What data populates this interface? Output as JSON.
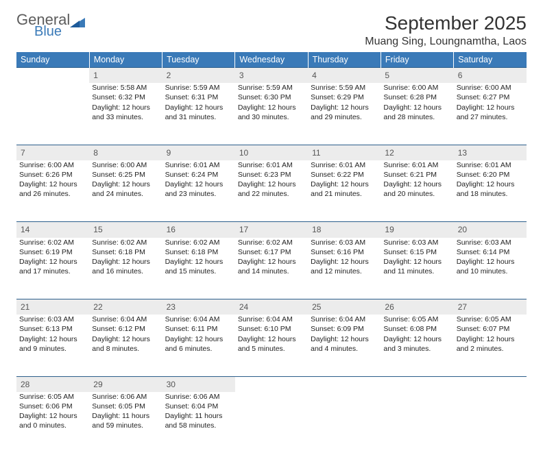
{
  "logo": {
    "general": "General",
    "blue": "Blue"
  },
  "title": "September 2025",
  "location": "Muang Sing, Loungnamtha, Laos",
  "colors": {
    "header_bg": "#3a7ab8",
    "daynum_bg": "#ececec",
    "rule": "#2a5d8a",
    "text": "#222222",
    "logo_gray": "#5c5c5c",
    "logo_blue": "#3a7ab8"
  },
  "weekdays": [
    "Sunday",
    "Monday",
    "Tuesday",
    "Wednesday",
    "Thursday",
    "Friday",
    "Saturday"
  ],
  "weeks": [
    {
      "nums": [
        "",
        "1",
        "2",
        "3",
        "4",
        "5",
        "6"
      ],
      "cells": [
        null,
        {
          "sunrise": "Sunrise: 5:58 AM",
          "sunset": "Sunset: 6:32 PM",
          "d1": "Daylight: 12 hours",
          "d2": "and 33 minutes."
        },
        {
          "sunrise": "Sunrise: 5:59 AM",
          "sunset": "Sunset: 6:31 PM",
          "d1": "Daylight: 12 hours",
          "d2": "and 31 minutes."
        },
        {
          "sunrise": "Sunrise: 5:59 AM",
          "sunset": "Sunset: 6:30 PM",
          "d1": "Daylight: 12 hours",
          "d2": "and 30 minutes."
        },
        {
          "sunrise": "Sunrise: 5:59 AM",
          "sunset": "Sunset: 6:29 PM",
          "d1": "Daylight: 12 hours",
          "d2": "and 29 minutes."
        },
        {
          "sunrise": "Sunrise: 6:00 AM",
          "sunset": "Sunset: 6:28 PM",
          "d1": "Daylight: 12 hours",
          "d2": "and 28 minutes."
        },
        {
          "sunrise": "Sunrise: 6:00 AM",
          "sunset": "Sunset: 6:27 PM",
          "d1": "Daylight: 12 hours",
          "d2": "and 27 minutes."
        }
      ]
    },
    {
      "nums": [
        "7",
        "8",
        "9",
        "10",
        "11",
        "12",
        "13"
      ],
      "cells": [
        {
          "sunrise": "Sunrise: 6:00 AM",
          "sunset": "Sunset: 6:26 PM",
          "d1": "Daylight: 12 hours",
          "d2": "and 26 minutes."
        },
        {
          "sunrise": "Sunrise: 6:00 AM",
          "sunset": "Sunset: 6:25 PM",
          "d1": "Daylight: 12 hours",
          "d2": "and 24 minutes."
        },
        {
          "sunrise": "Sunrise: 6:01 AM",
          "sunset": "Sunset: 6:24 PM",
          "d1": "Daylight: 12 hours",
          "d2": "and 23 minutes."
        },
        {
          "sunrise": "Sunrise: 6:01 AM",
          "sunset": "Sunset: 6:23 PM",
          "d1": "Daylight: 12 hours",
          "d2": "and 22 minutes."
        },
        {
          "sunrise": "Sunrise: 6:01 AM",
          "sunset": "Sunset: 6:22 PM",
          "d1": "Daylight: 12 hours",
          "d2": "and 21 minutes."
        },
        {
          "sunrise": "Sunrise: 6:01 AM",
          "sunset": "Sunset: 6:21 PM",
          "d1": "Daylight: 12 hours",
          "d2": "and 20 minutes."
        },
        {
          "sunrise": "Sunrise: 6:01 AM",
          "sunset": "Sunset: 6:20 PM",
          "d1": "Daylight: 12 hours",
          "d2": "and 18 minutes."
        }
      ]
    },
    {
      "nums": [
        "14",
        "15",
        "16",
        "17",
        "18",
        "19",
        "20"
      ],
      "cells": [
        {
          "sunrise": "Sunrise: 6:02 AM",
          "sunset": "Sunset: 6:19 PM",
          "d1": "Daylight: 12 hours",
          "d2": "and 17 minutes."
        },
        {
          "sunrise": "Sunrise: 6:02 AM",
          "sunset": "Sunset: 6:18 PM",
          "d1": "Daylight: 12 hours",
          "d2": "and 16 minutes."
        },
        {
          "sunrise": "Sunrise: 6:02 AM",
          "sunset": "Sunset: 6:18 PM",
          "d1": "Daylight: 12 hours",
          "d2": "and 15 minutes."
        },
        {
          "sunrise": "Sunrise: 6:02 AM",
          "sunset": "Sunset: 6:17 PM",
          "d1": "Daylight: 12 hours",
          "d2": "and 14 minutes."
        },
        {
          "sunrise": "Sunrise: 6:03 AM",
          "sunset": "Sunset: 6:16 PM",
          "d1": "Daylight: 12 hours",
          "d2": "and 12 minutes."
        },
        {
          "sunrise": "Sunrise: 6:03 AM",
          "sunset": "Sunset: 6:15 PM",
          "d1": "Daylight: 12 hours",
          "d2": "and 11 minutes."
        },
        {
          "sunrise": "Sunrise: 6:03 AM",
          "sunset": "Sunset: 6:14 PM",
          "d1": "Daylight: 12 hours",
          "d2": "and 10 minutes."
        }
      ]
    },
    {
      "nums": [
        "21",
        "22",
        "23",
        "24",
        "25",
        "26",
        "27"
      ],
      "cells": [
        {
          "sunrise": "Sunrise: 6:03 AM",
          "sunset": "Sunset: 6:13 PM",
          "d1": "Daylight: 12 hours",
          "d2": "and 9 minutes."
        },
        {
          "sunrise": "Sunrise: 6:04 AM",
          "sunset": "Sunset: 6:12 PM",
          "d1": "Daylight: 12 hours",
          "d2": "and 8 minutes."
        },
        {
          "sunrise": "Sunrise: 6:04 AM",
          "sunset": "Sunset: 6:11 PM",
          "d1": "Daylight: 12 hours",
          "d2": "and 6 minutes."
        },
        {
          "sunrise": "Sunrise: 6:04 AM",
          "sunset": "Sunset: 6:10 PM",
          "d1": "Daylight: 12 hours",
          "d2": "and 5 minutes."
        },
        {
          "sunrise": "Sunrise: 6:04 AM",
          "sunset": "Sunset: 6:09 PM",
          "d1": "Daylight: 12 hours",
          "d2": "and 4 minutes."
        },
        {
          "sunrise": "Sunrise: 6:05 AM",
          "sunset": "Sunset: 6:08 PM",
          "d1": "Daylight: 12 hours",
          "d2": "and 3 minutes."
        },
        {
          "sunrise": "Sunrise: 6:05 AM",
          "sunset": "Sunset: 6:07 PM",
          "d1": "Daylight: 12 hours",
          "d2": "and 2 minutes."
        }
      ]
    },
    {
      "nums": [
        "28",
        "29",
        "30",
        "",
        "",
        "",
        ""
      ],
      "cells": [
        {
          "sunrise": "Sunrise: 6:05 AM",
          "sunset": "Sunset: 6:06 PM",
          "d1": "Daylight: 12 hours",
          "d2": "and 0 minutes."
        },
        {
          "sunrise": "Sunrise: 6:06 AM",
          "sunset": "Sunset: 6:05 PM",
          "d1": "Daylight: 11 hours",
          "d2": "and 59 minutes."
        },
        {
          "sunrise": "Sunrise: 6:06 AM",
          "sunset": "Sunset: 6:04 PM",
          "d1": "Daylight: 11 hours",
          "d2": "and 58 minutes."
        },
        null,
        null,
        null,
        null
      ]
    }
  ]
}
